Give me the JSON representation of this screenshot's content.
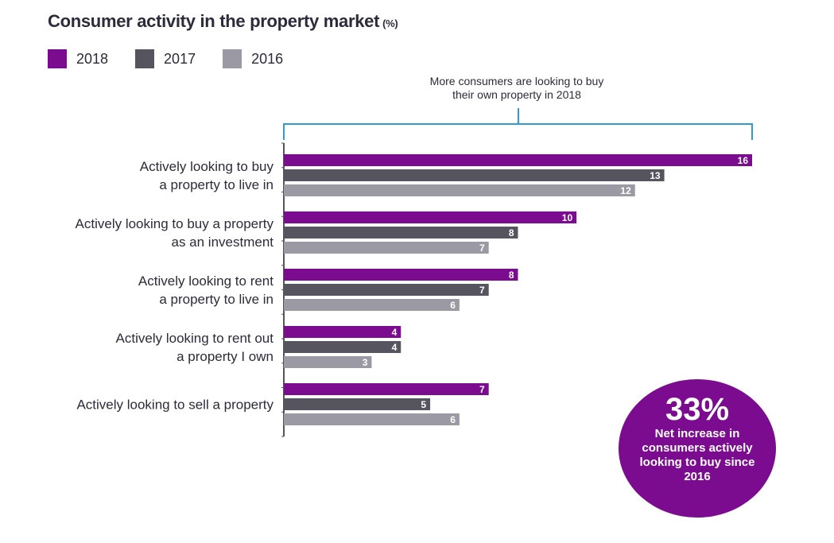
{
  "title": "Consumer activity in the property market",
  "title_unit": "(%)",
  "colors": {
    "2018": "#7b0b8f",
    "2017": "#56545f",
    "2016": "#9b99a3",
    "bracket": "#2e9bd6",
    "axis": "#555555"
  },
  "annotation": {
    "line1": "More consumers are looking to buy",
    "line2": "their own property in 2018"
  },
  "callout": {
    "value": "33%",
    "text": "Net increase in consumers actively looking to buy since 2016"
  },
  "chart_data": {
    "type": "bar",
    "orientation": "horizontal",
    "categories": [
      [
        "Actively looking to buy",
        "a property to live in"
      ],
      [
        "Actively looking to buy a property",
        "as an investment"
      ],
      [
        "Actively looking to rent",
        "a property to live in"
      ],
      [
        "Actively looking to rent out",
        "a property I own"
      ],
      [
        "Actively looking to sell a property"
      ]
    ],
    "series": [
      {
        "name": "2018",
        "values": [
          16,
          10,
          8,
          4,
          7
        ]
      },
      {
        "name": "2017",
        "values": [
          13,
          8,
          7,
          4,
          5
        ]
      },
      {
        "name": "2016",
        "values": [
          12,
          7,
          6,
          3,
          6
        ]
      }
    ],
    "xlim": [
      0,
      16
    ],
    "legend": "top-left",
    "grid": false
  }
}
